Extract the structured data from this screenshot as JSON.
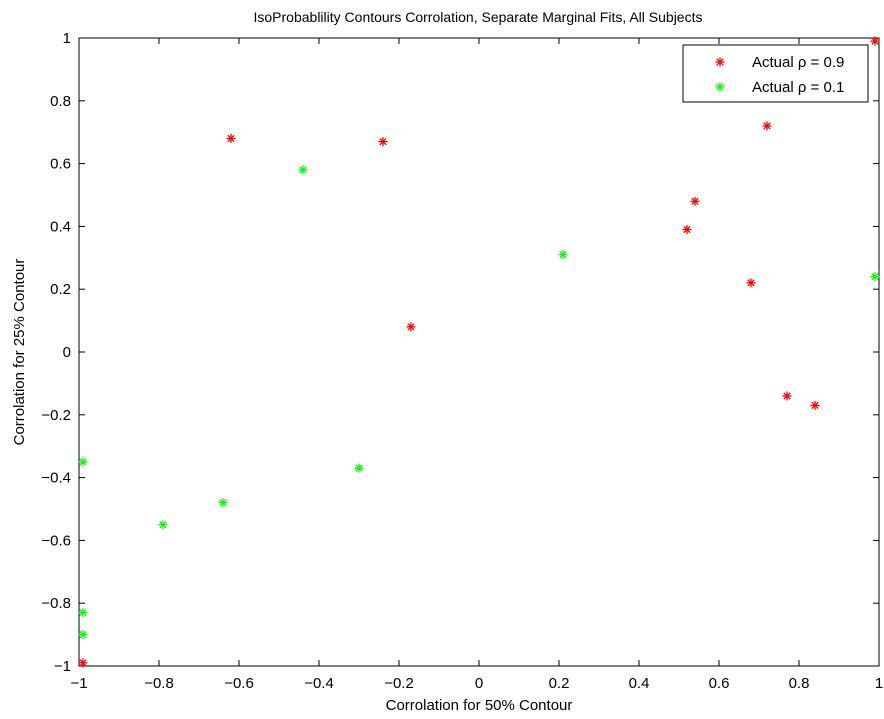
{
  "chart_data": {
    "type": "scatter",
    "title": "IsoProbablility Contours Corrolation, Separate Marginal Fits, All Subjects",
    "xlabel": "Corrolation for 50% Contour",
    "ylabel": "Corrolation for 25% Contour",
    "xlim": [
      -1,
      1
    ],
    "ylim": [
      -1,
      1
    ],
    "xticks": [
      -1,
      -0.8,
      -0.6,
      -0.4,
      -0.2,
      0,
      0.2,
      0.4,
      0.6,
      0.8,
      1
    ],
    "xtick_labels": [
      "−1",
      "−0.8",
      "−0.6",
      "−0.4",
      "−0.2",
      "0",
      "0.2",
      "0.4",
      "0.6",
      "0.8",
      "1"
    ],
    "yticks": [
      -1,
      -0.8,
      -0.6,
      -0.4,
      -0.2,
      0,
      0.2,
      0.4,
      0.6,
      0.8,
      1
    ],
    "ytick_labels": [
      "−1",
      "−0.8",
      "−0.6",
      "−0.4",
      "−0.2",
      "0",
      "0.2",
      "0.4",
      "0.6",
      "0.8",
      "1"
    ],
    "grid": false,
    "legend_position": "top-right",
    "marker": "asterisk",
    "series": [
      {
        "name": "Actual ρ = 0.9",
        "color": "#ff0000",
        "points": [
          [
            -0.62,
            0.68
          ],
          [
            -0.24,
            0.67
          ],
          [
            -0.17,
            0.08
          ],
          [
            0.52,
            0.39
          ],
          [
            0.54,
            0.48
          ],
          [
            0.68,
            0.22
          ],
          [
            0.72,
            0.72
          ],
          [
            0.77,
            -0.14
          ],
          [
            0.84,
            -0.17
          ],
          [
            0.99,
            0.99
          ],
          [
            -0.99,
            -0.99
          ]
        ]
      },
      {
        "name": "Actual ρ = 0.1",
        "color": "#00ff00",
        "points": [
          [
            -0.44,
            0.58
          ],
          [
            0.21,
            0.31
          ],
          [
            0.99,
            0.24
          ],
          [
            -0.3,
            -0.37
          ],
          [
            -0.64,
            -0.48
          ],
          [
            -0.79,
            -0.55
          ],
          [
            -0.99,
            -0.35
          ],
          [
            -0.99,
            -0.83
          ],
          [
            -0.99,
            -0.9
          ]
        ]
      }
    ]
  }
}
